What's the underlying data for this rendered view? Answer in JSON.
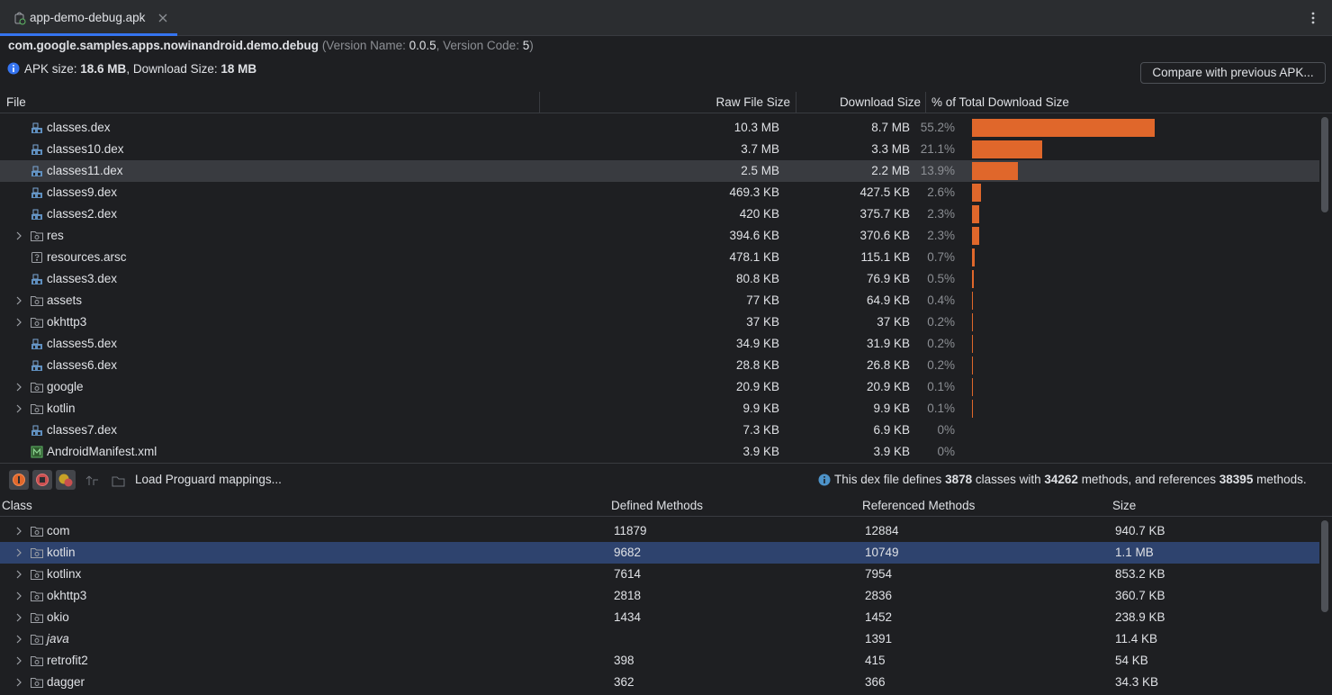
{
  "tab": {
    "title": "app-demo-debug.apk"
  },
  "package": {
    "name": "com.google.samples.apps.nowinandroid.demo.debug",
    "parts": [
      "(Version Name: ",
      "0.0.5",
      ", Version Code: ",
      "5",
      ")"
    ]
  },
  "size_line": [
    "APK size: ",
    "18.6 MB",
    ", Download Size: ",
    "18 MB"
  ],
  "compare_button": "Compare with previous APK...",
  "file_table": {
    "columns": [
      "File",
      "Raw File Size",
      "Download Size",
      "% of Total Download Size"
    ],
    "selected_row": 2,
    "bar_color": "#e0672b",
    "rows": [
      {
        "name": "classes.dex",
        "kind": "dex",
        "raw": "10.3 MB",
        "download": "8.7 MB",
        "percent": 55.2,
        "percent_label": "55.2%"
      },
      {
        "name": "classes10.dex",
        "kind": "dex",
        "raw": "3.7 MB",
        "download": "3.3 MB",
        "percent": 21.1,
        "percent_label": "21.1%"
      },
      {
        "name": "classes11.dex",
        "kind": "dex",
        "raw": "2.5 MB",
        "download": "2.2 MB",
        "percent": 13.9,
        "percent_label": "13.9%"
      },
      {
        "name": "classes9.dex",
        "kind": "dex",
        "raw": "469.3 KB",
        "download": "427.5 KB",
        "percent": 2.6,
        "percent_label": "2.6%"
      },
      {
        "name": "classes2.dex",
        "kind": "dex",
        "raw": "420 KB",
        "download": "375.7 KB",
        "percent": 2.3,
        "percent_label": "2.3%"
      },
      {
        "name": "res",
        "kind": "folder",
        "raw": "394.6 KB",
        "download": "370.6 KB",
        "percent": 2.3,
        "percent_label": "2.3%"
      },
      {
        "name": "resources.arsc",
        "kind": "file",
        "raw": "478.1 KB",
        "download": "115.1 KB",
        "percent": 0.7,
        "percent_label": "0.7%"
      },
      {
        "name": "classes3.dex",
        "kind": "dex",
        "raw": "80.8 KB",
        "download": "76.9 KB",
        "percent": 0.5,
        "percent_label": "0.5%"
      },
      {
        "name": "assets",
        "kind": "folder",
        "raw": "77 KB",
        "download": "64.9 KB",
        "percent": 0.4,
        "percent_label": "0.4%"
      },
      {
        "name": "okhttp3",
        "kind": "folder",
        "raw": "37 KB",
        "download": "37 KB",
        "percent": 0.2,
        "percent_label": "0.2%"
      },
      {
        "name": "classes5.dex",
        "kind": "dex",
        "raw": "34.9 KB",
        "download": "31.9 KB",
        "percent": 0.2,
        "percent_label": "0.2%"
      },
      {
        "name": "classes6.dex",
        "kind": "dex",
        "raw": "28.8 KB",
        "download": "26.8 KB",
        "percent": 0.2,
        "percent_label": "0.2%"
      },
      {
        "name": "google",
        "kind": "folder",
        "raw": "20.9 KB",
        "download": "20.9 KB",
        "percent": 0.1,
        "percent_label": "0.1%"
      },
      {
        "name": "kotlin",
        "kind": "folder",
        "raw": "9.9 KB",
        "download": "9.9 KB",
        "percent": 0.1,
        "percent_label": "0.1%"
      },
      {
        "name": "classes7.dex",
        "kind": "dex",
        "raw": "7.3 KB",
        "download": "6.9 KB",
        "percent": 0,
        "percent_label": "0%"
      },
      {
        "name": "AndroidManifest.xml",
        "kind": "manifest",
        "raw": "3.9 KB",
        "download": "3.9 KB",
        "percent": 0,
        "percent_label": "0%"
      }
    ]
  },
  "toolbar": {
    "load_button": "Load Proguard mappings..."
  },
  "dex_info": [
    "This dex file defines ",
    3878,
    " classes with ",
    34262,
    " methods, and references ",
    38395,
    " methods."
  ],
  "class_table": {
    "columns": [
      "Class",
      "Defined Methods",
      "Referenced Methods",
      "Size"
    ],
    "selected_row": 1,
    "rows": [
      {
        "name": "com",
        "defined": 11879,
        "referenced": 12884,
        "size": "940.7 KB"
      },
      {
        "name": "kotlin",
        "defined": 9682,
        "referenced": 10749,
        "size": "1.1 MB"
      },
      {
        "name": "kotlinx",
        "defined": 7614,
        "referenced": 7954,
        "size": "853.2 KB"
      },
      {
        "name": "okhttp3",
        "defined": 2818,
        "referenced": 2836,
        "size": "360.7 KB"
      },
      {
        "name": "okio",
        "defined": 1434,
        "referenced": 1452,
        "size": "238.9 KB"
      },
      {
        "name": "java",
        "defined": null,
        "referenced": 1391,
        "size": "11.4 KB",
        "italic": true
      },
      {
        "name": "retrofit2",
        "defined": 398,
        "referenced": 415,
        "size": "54 KB"
      },
      {
        "name": "dagger",
        "defined": 362,
        "referenced": 366,
        "size": "34.3 KB"
      }
    ]
  }
}
